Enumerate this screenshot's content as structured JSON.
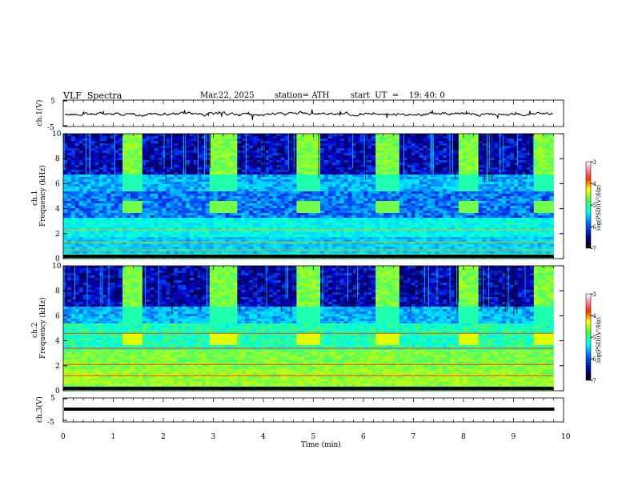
{
  "header": {
    "title": "VLF  Spectra",
    "date": "Mar.22, 2025",
    "station": "station= ATH",
    "start": "start  UT  =    19: 40: 0"
  },
  "chart_data": [
    {
      "type": "line",
      "ylabel": "ch.1(V)",
      "yticks": [
        "5",
        "-5"
      ],
      "ylim": [
        -5,
        5
      ],
      "xlim": [
        0,
        10
      ],
      "description_values": {
        "mean_level": 0.0
      }
    },
    {
      "type": "heatmap",
      "ylabel": "ch.1\nFrequency  (kHz)",
      "yticks": [
        "0",
        "2",
        "4",
        "6",
        "8",
        "10"
      ],
      "ylim": [
        0,
        10
      ],
      "xlim": [
        0,
        10
      ],
      "colorbar": {
        "label": "log(PSD)(V²/Hz)",
        "ticks": [
          "-3",
          "-4",
          "-5",
          "-6",
          "-7"
        ],
        "range": [
          -7,
          -3
        ]
      }
    },
    {
      "type": "heatmap",
      "ylabel": "ch.2\nFrequency  (kHz)",
      "yticks": [
        "0",
        "2",
        "4",
        "6",
        "8",
        "10"
      ],
      "ylim": [
        0,
        10
      ],
      "xlim": [
        0,
        10
      ],
      "colorbar": {
        "label": "log(PSD)(V²/Hz)",
        "ticks": [
          "-3",
          "-4",
          "-5",
          "-6",
          "-7"
        ],
        "range": [
          -7,
          -3
        ]
      }
    },
    {
      "type": "line",
      "ylabel": "ch.3(V)",
      "yticks": [
        "5",
        "-5"
      ],
      "ylim": [
        -5,
        5
      ],
      "xlim": [
        0,
        10
      ],
      "xlabel": "Time  (min)",
      "xticks": [
        "0",
        "1",
        "2",
        "3",
        "4",
        "5",
        "6",
        "7",
        "8",
        "9",
        "10"
      ],
      "description_values": {
        "mean_level": 0.0
      }
    }
  ]
}
